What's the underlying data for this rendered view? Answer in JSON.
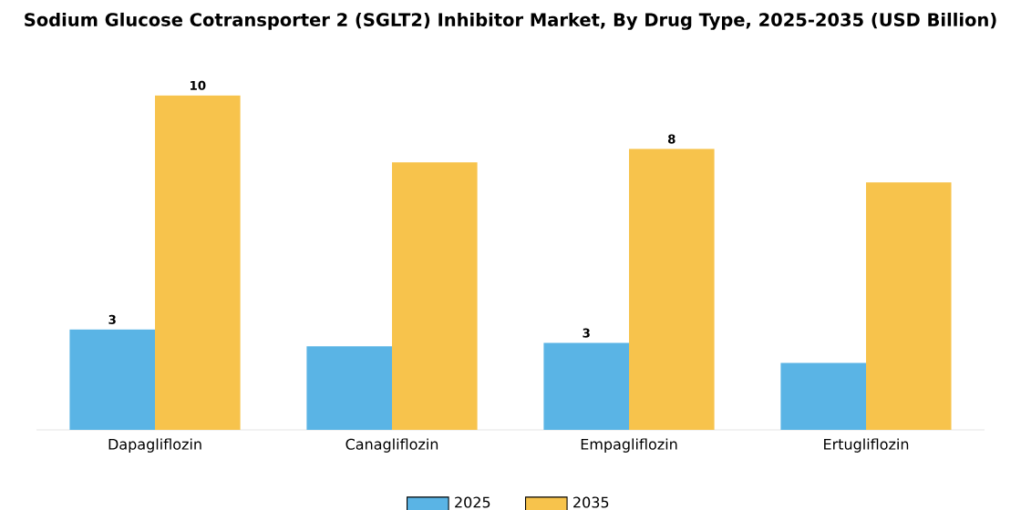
{
  "chart_data": {
    "type": "bar",
    "title": "Sodium Glucose Cotransporter 2 (SGLT2) Inhibitor Market, By Drug Type, 2025-2035 (USD Billion)",
    "categories": [
      "Dapagliflozin",
      "Canagliflozin",
      "Empagliflozin",
      "Ertugliflozin"
    ],
    "series": [
      {
        "name": "2025",
        "color": "#5ab4e5",
        "values": [
          3.0,
          2.5,
          2.6,
          2.0
        ],
        "value_labels": [
          "3",
          null,
          "3",
          null
        ]
      },
      {
        "name": "2035",
        "color": "#f7c34c",
        "values": [
          10.0,
          8.0,
          8.4,
          7.4
        ],
        "value_labels": [
          "10",
          null,
          "8",
          null
        ]
      }
    ],
    "tick_labels": "x",
    "grid": false,
    "legend": "bottom"
  }
}
